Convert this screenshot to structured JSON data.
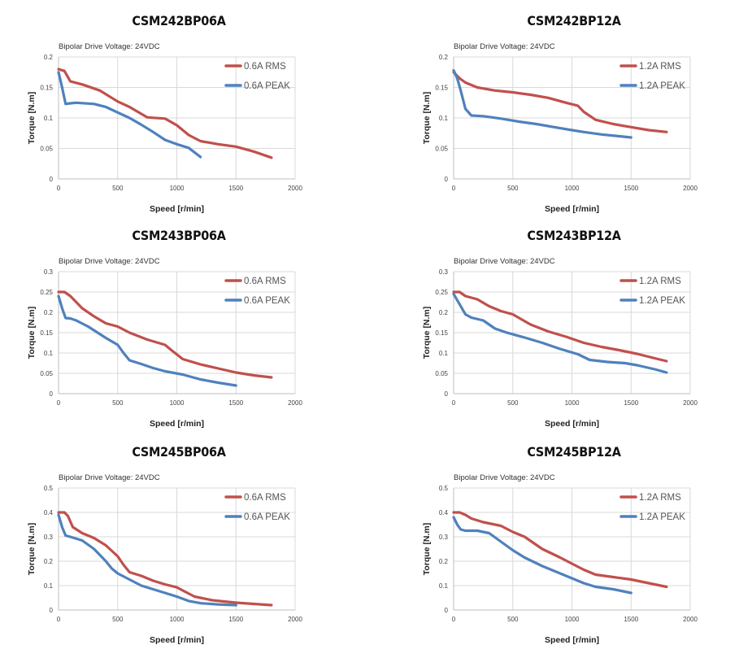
{
  "colors": {
    "rms": "#c0504d",
    "peak": "#4f81bd",
    "grid": "#d9d9d9",
    "axis": "#bfbfbf"
  },
  "chart_data": [
    {
      "type": "line",
      "title": "CSM242BP06A",
      "subtitle": "Bipolar Drive  Voltage: 24VDC",
      "xlabel": "Speed [r/min]",
      "ylabel": "Torque [N.m]",
      "xlim": [
        0,
        2000
      ],
      "ylim": [
        0,
        0.2
      ],
      "xticks": [
        "0",
        "500",
        "1000",
        "1500",
        "2000"
      ],
      "yticks": [
        "0",
        "0.05",
        "0.1",
        "0.15",
        "0.2"
      ],
      "series": [
        {
          "name": "0.6A RMS",
          "x": [
            0,
            50,
            100,
            200,
            350,
            500,
            600,
            750,
            900,
            1000,
            1100,
            1200,
            1350,
            1500,
            1650,
            1800
          ],
          "values": [
            0.18,
            0.177,
            0.16,
            0.155,
            0.145,
            0.127,
            0.118,
            0.101,
            0.099,
            0.088,
            0.072,
            0.062,
            0.057,
            0.053,
            0.045,
            0.035
          ]
        },
        {
          "name": "0.6A PEAK",
          "x": [
            0,
            30,
            60,
            100,
            150,
            300,
            400,
            500,
            600,
            700,
            800,
            900,
            1000,
            1100,
            1200
          ],
          "values": [
            0.175,
            0.15,
            0.123,
            0.124,
            0.125,
            0.123,
            0.118,
            0.109,
            0.1,
            0.089,
            0.077,
            0.064,
            0.057,
            0.051,
            0.036
          ]
        }
      ]
    },
    {
      "type": "line",
      "title": "CSM242BP12A",
      "subtitle": "Bipolar Drive  Voltage: 24VDC",
      "xlabel": "Speed [r/min]",
      "ylabel": "Torque [N.m]",
      "xlim": [
        0,
        2000
      ],
      "ylim": [
        0,
        0.2
      ],
      "xticks": [
        "0",
        "500",
        "1000",
        "1500",
        "2000"
      ],
      "yticks": [
        "0",
        "0.05",
        "0.1",
        "0.15",
        "0.2"
      ],
      "series": [
        {
          "name": "1.2A RMS",
          "x": [
            0,
            50,
            100,
            200,
            350,
            500,
            650,
            800,
            950,
            1050,
            1100,
            1200,
            1350,
            1500,
            1650,
            1800
          ],
          "values": [
            0.175,
            0.165,
            0.158,
            0.15,
            0.145,
            0.142,
            0.138,
            0.133,
            0.125,
            0.12,
            0.11,
            0.097,
            0.09,
            0.085,
            0.08,
            0.077
          ]
        },
        {
          "name": "1.2A PEAK",
          "x": [
            0,
            30,
            60,
            100,
            150,
            250,
            400,
            550,
            700,
            850,
            1000,
            1100,
            1250,
            1400,
            1500
          ],
          "values": [
            0.178,
            0.165,
            0.145,
            0.115,
            0.104,
            0.103,
            0.099,
            0.094,
            0.09,
            0.085,
            0.08,
            0.077,
            0.073,
            0.07,
            0.068
          ]
        }
      ]
    },
    {
      "type": "line",
      "title": "CSM243BP06A",
      "subtitle": "Bipolar Drive  Voltage: 24VDC",
      "xlabel": "Speed [r/min]",
      "ylabel": "Torque [N.m]",
      "xlim": [
        0,
        2000
      ],
      "ylim": [
        0,
        0.3
      ],
      "xticks": [
        "0",
        "500",
        "1000",
        "1500",
        "2000"
      ],
      "yticks": [
        "0",
        "0.05",
        "0.1",
        "0.15",
        "0.2",
        "0.25",
        "0.3"
      ],
      "series": [
        {
          "name": "0.6A RMS",
          "x": [
            0,
            50,
            100,
            150,
            200,
            300,
            400,
            500,
            600,
            750,
            900,
            950,
            1050,
            1200,
            1350,
            1500,
            1650,
            1800
          ],
          "values": [
            0.25,
            0.25,
            0.24,
            0.225,
            0.21,
            0.19,
            0.173,
            0.165,
            0.15,
            0.133,
            0.12,
            0.108,
            0.085,
            0.072,
            0.062,
            0.052,
            0.045,
            0.04
          ]
        },
        {
          "name": "0.6A PEAK",
          "x": [
            0,
            30,
            60,
            100,
            150,
            250,
            400,
            500,
            550,
            600,
            700,
            800,
            900,
            1050,
            1200,
            1350,
            1500
          ],
          "values": [
            0.24,
            0.21,
            0.186,
            0.185,
            0.18,
            0.165,
            0.137,
            0.12,
            0.1,
            0.082,
            0.073,
            0.063,
            0.055,
            0.047,
            0.035,
            0.027,
            0.02
          ]
        }
      ]
    },
    {
      "type": "line",
      "title": "CSM243BP12A",
      "subtitle": "Bipolar Drive  Voltage: 24VDC",
      "xlabel": "Speed [r/min]",
      "ylabel": "Torque [N.m]",
      "xlim": [
        0,
        2000
      ],
      "ylim": [
        0,
        0.3
      ],
      "xticks": [
        "0",
        "500",
        "1000",
        "1500",
        "2000"
      ],
      "yticks": [
        "0",
        "0.05",
        "0.1",
        "0.15",
        "0.2",
        "0.25",
        "0.3"
      ],
      "series": [
        {
          "name": "1.2A RMS",
          "x": [
            0,
            50,
            100,
            200,
            300,
            400,
            500,
            650,
            800,
            950,
            1100,
            1250,
            1400,
            1550,
            1700,
            1800
          ],
          "values": [
            0.25,
            0.25,
            0.24,
            0.232,
            0.215,
            0.203,
            0.195,
            0.17,
            0.153,
            0.14,
            0.125,
            0.115,
            0.107,
            0.098,
            0.087,
            0.08
          ]
        },
        {
          "name": "1.2A PEAK",
          "x": [
            0,
            50,
            100,
            150,
            250,
            350,
            450,
            600,
            750,
            900,
            1050,
            1150,
            1300,
            1450,
            1550,
            1700,
            1800
          ],
          "values": [
            0.245,
            0.22,
            0.195,
            0.187,
            0.18,
            0.16,
            0.15,
            0.138,
            0.125,
            0.11,
            0.097,
            0.083,
            0.078,
            0.075,
            0.07,
            0.06,
            0.052
          ]
        }
      ]
    },
    {
      "type": "line",
      "title": "CSM245BP06A",
      "subtitle": "Bipolar Drive  Voltage: 24VDC",
      "xlabel": "Speed [r/min]",
      "ylabel": "Torque [N.m]",
      "xlim": [
        0,
        2000
      ],
      "ylim": [
        0,
        0.5
      ],
      "xticks": [
        "0",
        "500",
        "1000",
        "1500",
        "2000"
      ],
      "yticks": [
        "0",
        "0.1",
        "0.2",
        "0.3",
        "0.4",
        "0.5"
      ],
      "series": [
        {
          "name": "0.6A RMS",
          "x": [
            0,
            50,
            80,
            120,
            200,
            300,
            400,
            500,
            550,
            600,
            700,
            800,
            900,
            1000,
            1050,
            1150,
            1300,
            1500,
            1650,
            1800
          ],
          "values": [
            0.4,
            0.4,
            0.385,
            0.34,
            0.315,
            0.295,
            0.265,
            0.22,
            0.185,
            0.155,
            0.14,
            0.12,
            0.105,
            0.093,
            0.08,
            0.055,
            0.04,
            0.03,
            0.025,
            0.02
          ]
        },
        {
          "name": "0.6A PEAK",
          "x": [
            0,
            30,
            60,
            100,
            200,
            300,
            400,
            450,
            500,
            600,
            700,
            800,
            900,
            1000,
            1100,
            1200,
            1350,
            1500
          ],
          "values": [
            0.39,
            0.34,
            0.305,
            0.3,
            0.285,
            0.25,
            0.2,
            0.17,
            0.15,
            0.125,
            0.1,
            0.085,
            0.07,
            0.055,
            0.037,
            0.028,
            0.023,
            0.02
          ]
        }
      ]
    },
    {
      "type": "line",
      "title": "CSM245BP12A",
      "subtitle": "Bipolar Drive  Voltage: 24VDC",
      "xlabel": "Speed [r/min]",
      "ylabel": "Torque [N.m]",
      "xlim": [
        0,
        2000
      ],
      "ylim": [
        0,
        0.5
      ],
      "xticks": [
        "0",
        "500",
        "1000",
        "1500",
        "2000"
      ],
      "yticks": [
        "0",
        "0.1",
        "0.2",
        "0.3",
        "0.4",
        "0.5"
      ],
      "series": [
        {
          "name": "1.2A RMS",
          "x": [
            0,
            50,
            100,
            150,
            250,
            400,
            500,
            600,
            750,
            900,
            1000,
            1100,
            1200,
            1350,
            1500,
            1650,
            1800
          ],
          "values": [
            0.4,
            0.4,
            0.39,
            0.375,
            0.36,
            0.345,
            0.32,
            0.3,
            0.25,
            0.215,
            0.19,
            0.165,
            0.145,
            0.135,
            0.125,
            0.11,
            0.095
          ]
        },
        {
          "name": "1.2A PEAK",
          "x": [
            0,
            30,
            60,
            100,
            200,
            300,
            400,
            500,
            600,
            750,
            900,
            1000,
            1100,
            1200,
            1350,
            1500
          ],
          "values": [
            0.38,
            0.35,
            0.33,
            0.325,
            0.325,
            0.315,
            0.28,
            0.245,
            0.215,
            0.18,
            0.15,
            0.13,
            0.11,
            0.095,
            0.085,
            0.07
          ]
        }
      ]
    }
  ]
}
